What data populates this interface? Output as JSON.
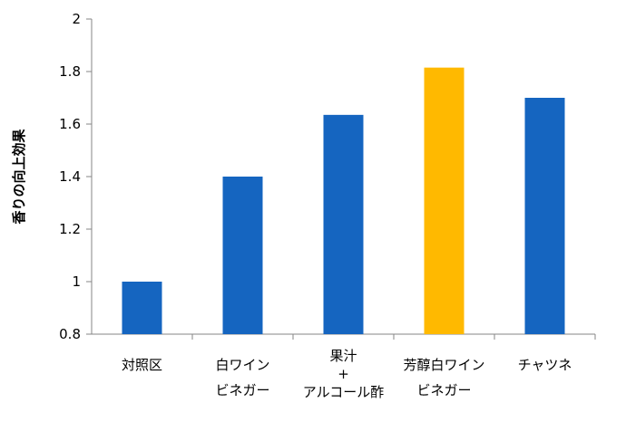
{
  "chart_data": {
    "type": "bar",
    "title": "",
    "xlabel": "",
    "ylabel": "香りの向上効果",
    "ylim": [
      0.8,
      2
    ],
    "yticks": [
      "0.8",
      "1",
      "1.2",
      "1.4",
      "1.6",
      "1.8",
      "2"
    ],
    "grid": false,
    "legend": "none",
    "categories": [
      [
        "対照区"
      ],
      [
        "白ワイン",
        "ビネガー"
      ],
      [
        "果汁",
        "+",
        "アルコール酢"
      ],
      [
        "芳醇白ワイン",
        "ビネガー"
      ],
      [
        "チャツネ"
      ]
    ],
    "values": [
      1.0,
      1.4,
      1.635,
      1.815,
      1.7
    ],
    "colors": [
      "#1565C0",
      "#1565C0",
      "#1565C0",
      "#FFB900",
      "#1565C0"
    ]
  }
}
